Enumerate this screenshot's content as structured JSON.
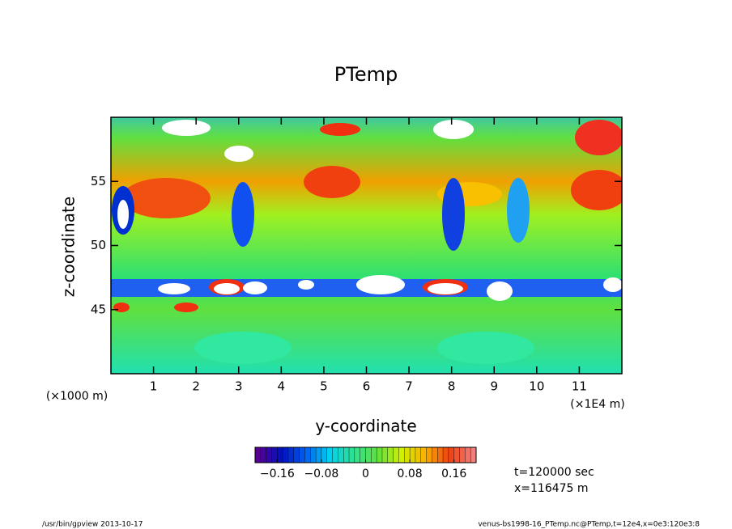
{
  "chart_data": {
    "type": "contour",
    "title": "PTemp",
    "xlabel": "y-coordinate",
    "ylabel": "z-coordinate",
    "x_unit": "(×1E4 m)",
    "y_unit": "(×1000 m)",
    "xlim": [
      0,
      12
    ],
    "xticks": [
      1,
      2,
      3,
      4,
      5,
      6,
      7,
      8,
      9,
      10,
      11
    ],
    "ylim": [
      40,
      60
    ],
    "yticks": [
      45,
      50,
      55
    ],
    "colorbar": {
      "lim": [
        -0.2,
        0.2
      ],
      "ticks": [
        {
          "value": -0.16,
          "label": "−0.16"
        },
        {
          "value": -0.08,
          "label": "−0.08"
        },
        0,
        0.08,
        0.16
      ]
    },
    "annotations": [
      "t=120000 sec",
      "x=116475 m"
    ],
    "footer_left": "/usr/bin/gpview  2013-10-17",
    "footer_right": "venus-bs1998-16_PTemp.nc@PTemp,t=12e4,x=0e3:120e3:8"
  }
}
